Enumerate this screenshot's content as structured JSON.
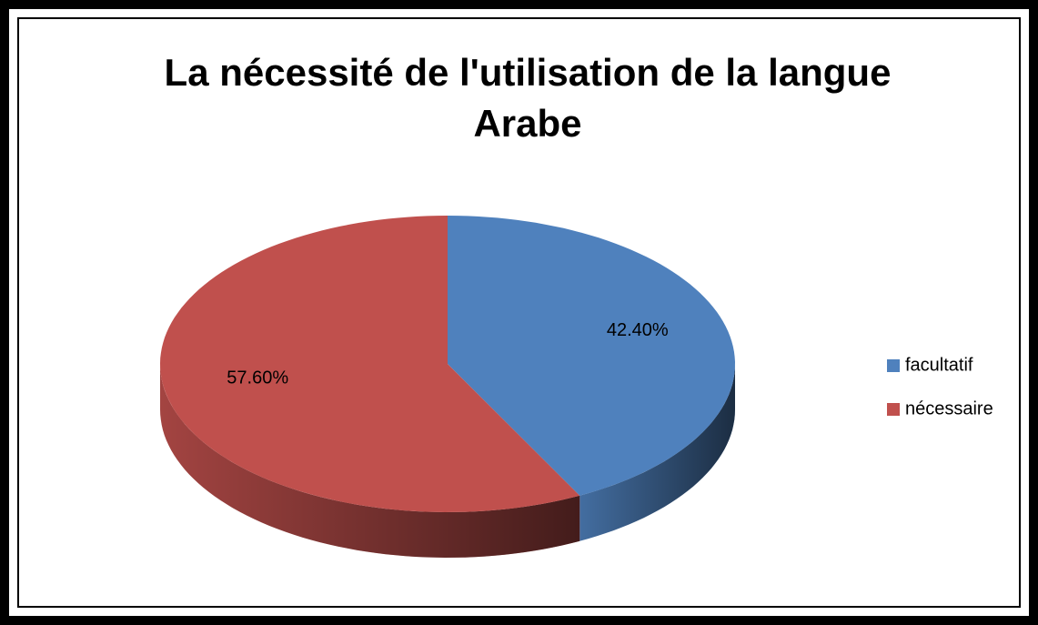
{
  "chart_data": {
    "type": "pie",
    "title": "La nécessité de l'utilisation de la langue Arabe",
    "categories": [
      "facultatif",
      "nécessaire"
    ],
    "values": [
      42.4,
      57.6
    ],
    "value_labels": [
      "42.40%",
      "57.60%"
    ],
    "colors": [
      "#4f81bd",
      "#c0504d"
    ],
    "legend": "right"
  }
}
